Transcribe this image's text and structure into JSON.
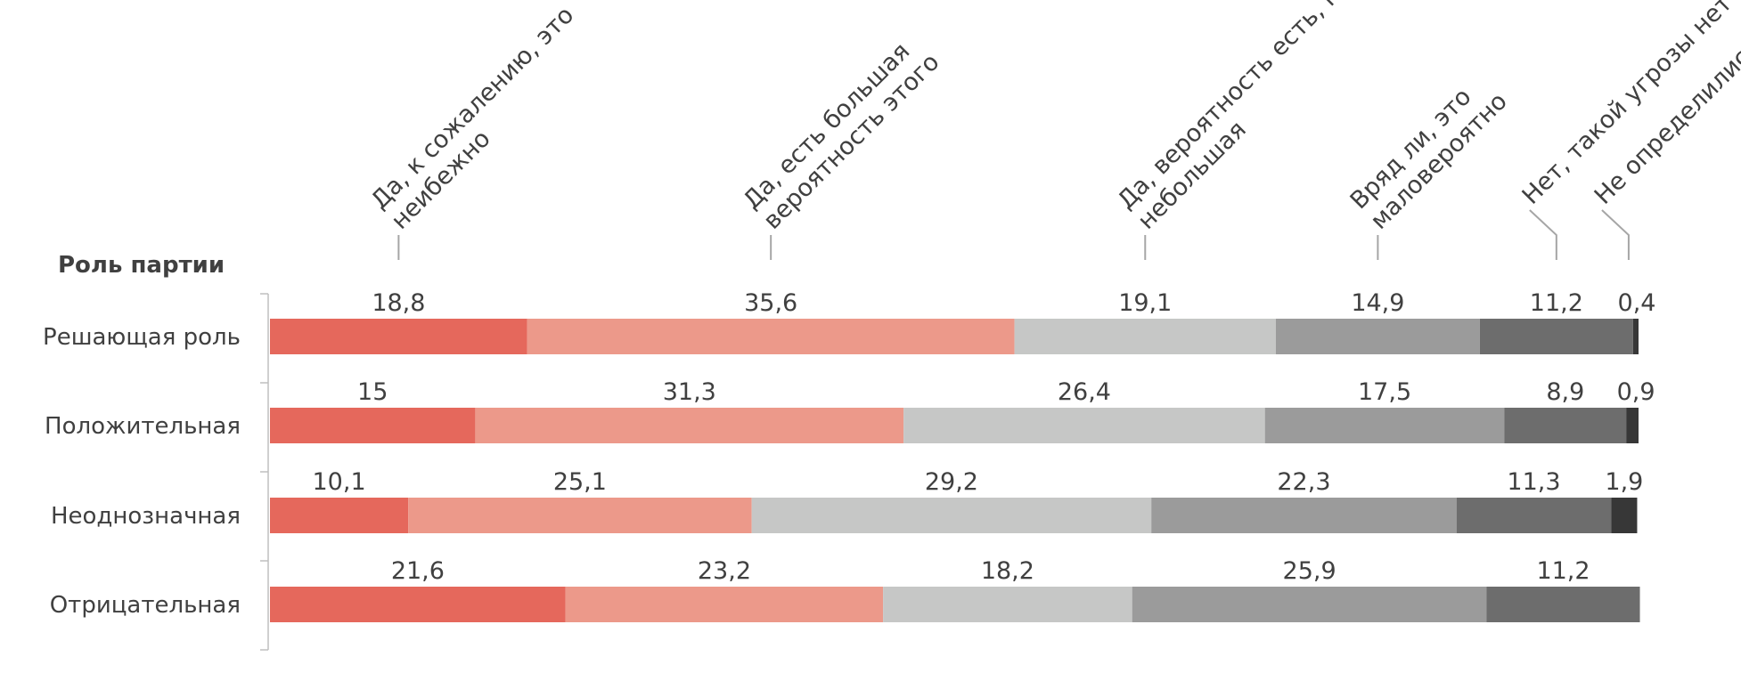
{
  "chart_data": {
    "type": "bar",
    "orientation": "horizontal",
    "stacked": true,
    "group_title": "Роль партии",
    "categories": [
      "Решающая роль",
      "Положительная",
      "Неоднозначная",
      "Отрицательная"
    ],
    "series": [
      {
        "name": "Да, к сожалению, это неибежно",
        "color": "#e5685c",
        "values": [
          18.8,
          15,
          10.1,
          21.6
        ]
      },
      {
        "name": "Да, есть большая вероятность этого",
        "color": "#ec998a",
        "values": [
          35.6,
          31.3,
          25.1,
          23.2
        ]
      },
      {
        "name": "Да, вероятность есть, но небольшая",
        "color": "#c6c7c6",
        "values": [
          19.1,
          26.4,
          29.2,
          18.2
        ]
      },
      {
        "name": "Вряд ли, это маловероятно",
        "color": "#9b9b9b",
        "values": [
          14.9,
          17.5,
          22.3,
          25.9
        ]
      },
      {
        "name": "Нет, такой угрозы нет",
        "color": "#6d6d6d",
        "values": [
          11.2,
          8.9,
          11.3,
          11.2
        ]
      },
      {
        "name": "Не определились",
        "color": "#373737",
        "values": [
          0.4,
          0.9,
          1.9,
          0
        ]
      }
    ],
    "value_labels": [
      [
        "18,8",
        "35,6",
        "19,1",
        "14,9",
        "11,2",
        "0,4"
      ],
      [
        "15",
        "31,3",
        "26,4",
        "17,5",
        "8,9",
        "0,9"
      ],
      [
        "10,1",
        "25,1",
        "29,2",
        "22,3",
        "11,3",
        "1,9"
      ],
      [
        "21,6",
        "23,2",
        "18,2",
        "25,9",
        "11,2",
        ""
      ]
    ],
    "legend": {
      "placement": "top-rotated",
      "lines": [
        [
          "Да, к сожалению, это",
          "неибежно"
        ],
        [
          "Да, есть большая",
          "вероятность этого"
        ],
        [
          "Да, вероятность есть, но",
          "небольшая"
        ],
        [
          "Вряд ли, это",
          "маловероятно"
        ],
        [
          "Нет, такой угрозы нет"
        ],
        [
          "Не определились"
        ]
      ]
    },
    "xlim": [
      0,
      100
    ],
    "grid": false
  }
}
